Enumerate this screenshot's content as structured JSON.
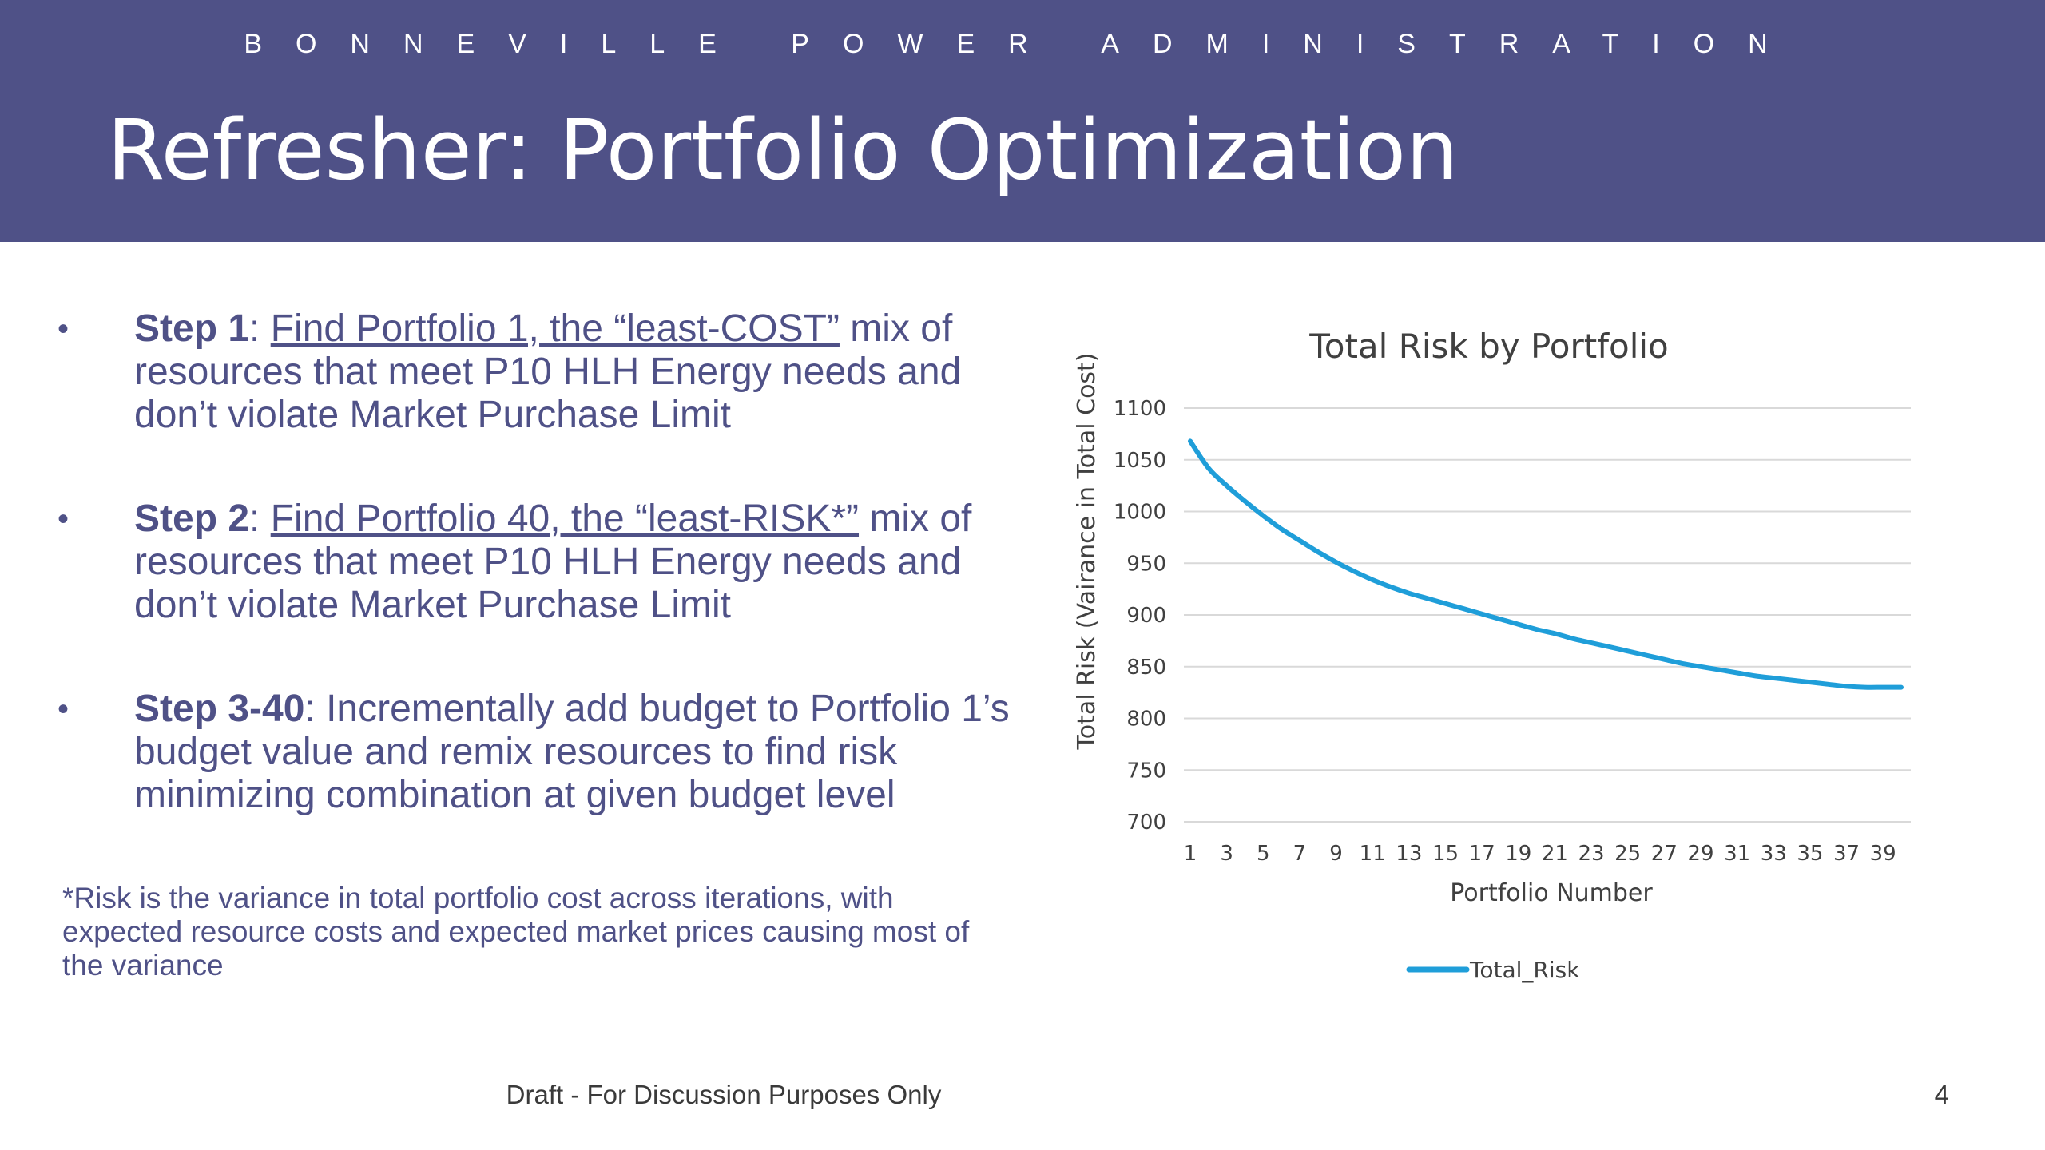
{
  "header": {
    "org": "BONNEVILLE POWER ADMINISTRATION",
    "title": "Refresher: Portfolio Optimization"
  },
  "bullets": [
    {
      "label": "Step 1",
      "sep": ": ",
      "underlined": "Find Portfolio 1, the “least-COST”",
      "rest": " mix of resources that meet P10 HLH Energy needs and don’t violate Market Purchase Limit"
    },
    {
      "label": "Step 2",
      "sep": ": ",
      "underlined": "Find Portfolio 40, the “least-RISK*”",
      "rest": " mix of resources that meet P10 HLH Energy needs and don’t violate Market Purchase Limit"
    },
    {
      "label": "Step 3-40",
      "sep": ": ",
      "underlined": "",
      "rest": "Incrementally add budget to Portfolio 1’s budget value and remix resources to find risk minimizing combination at given budget level"
    }
  ],
  "bullet_glyph": "•",
  "footnote": "*Risk is the variance in total portfolio cost across iterations, with expected resource costs and expected market prices causing most of the variance",
  "footer": {
    "note": "Draft - For Discussion Purposes Only",
    "page": "4"
  },
  "colors": {
    "header_bg": "#4f5187",
    "text_accent": "#4f5187",
    "series_line": "#1f9ed9",
    "gridline": "#d9d9d9"
  },
  "chart_data": {
    "type": "line",
    "title": "Total Risk by Portfolio",
    "xlabel": "Portfolio Number",
    "ylabel": "Total Risk (Vairance in Total Cost)",
    "ylim": [
      700,
      1100
    ],
    "yticks": [
      700,
      750,
      800,
      850,
      900,
      950,
      1000,
      1050,
      1100
    ],
    "xticks": [
      1,
      3,
      5,
      7,
      9,
      11,
      13,
      15,
      17,
      19,
      21,
      23,
      25,
      27,
      29,
      31,
      33,
      35,
      37,
      39
    ],
    "grid": true,
    "legend_position": "bottom",
    "series": [
      {
        "name": "Total_Risk",
        "x": [
          1,
          2,
          3,
          4,
          5,
          6,
          7,
          8,
          9,
          10,
          11,
          12,
          13,
          14,
          15,
          16,
          17,
          18,
          19,
          20,
          21,
          22,
          23,
          24,
          25,
          26,
          27,
          28,
          29,
          30,
          31,
          32,
          33,
          34,
          35,
          36,
          37,
          38,
          39,
          40
        ],
        "values": [
          1068,
          1042,
          1025,
          1010,
          996,
          983,
          972,
          961,
          951,
          942,
          934,
          927,
          921,
          916,
          911,
          906,
          901,
          896,
          891,
          886,
          882,
          877,
          873,
          869,
          865,
          861,
          857,
          853,
          850,
          847,
          844,
          841,
          839,
          837,
          835,
          833,
          831,
          830,
          830,
          830
        ]
      }
    ]
  }
}
